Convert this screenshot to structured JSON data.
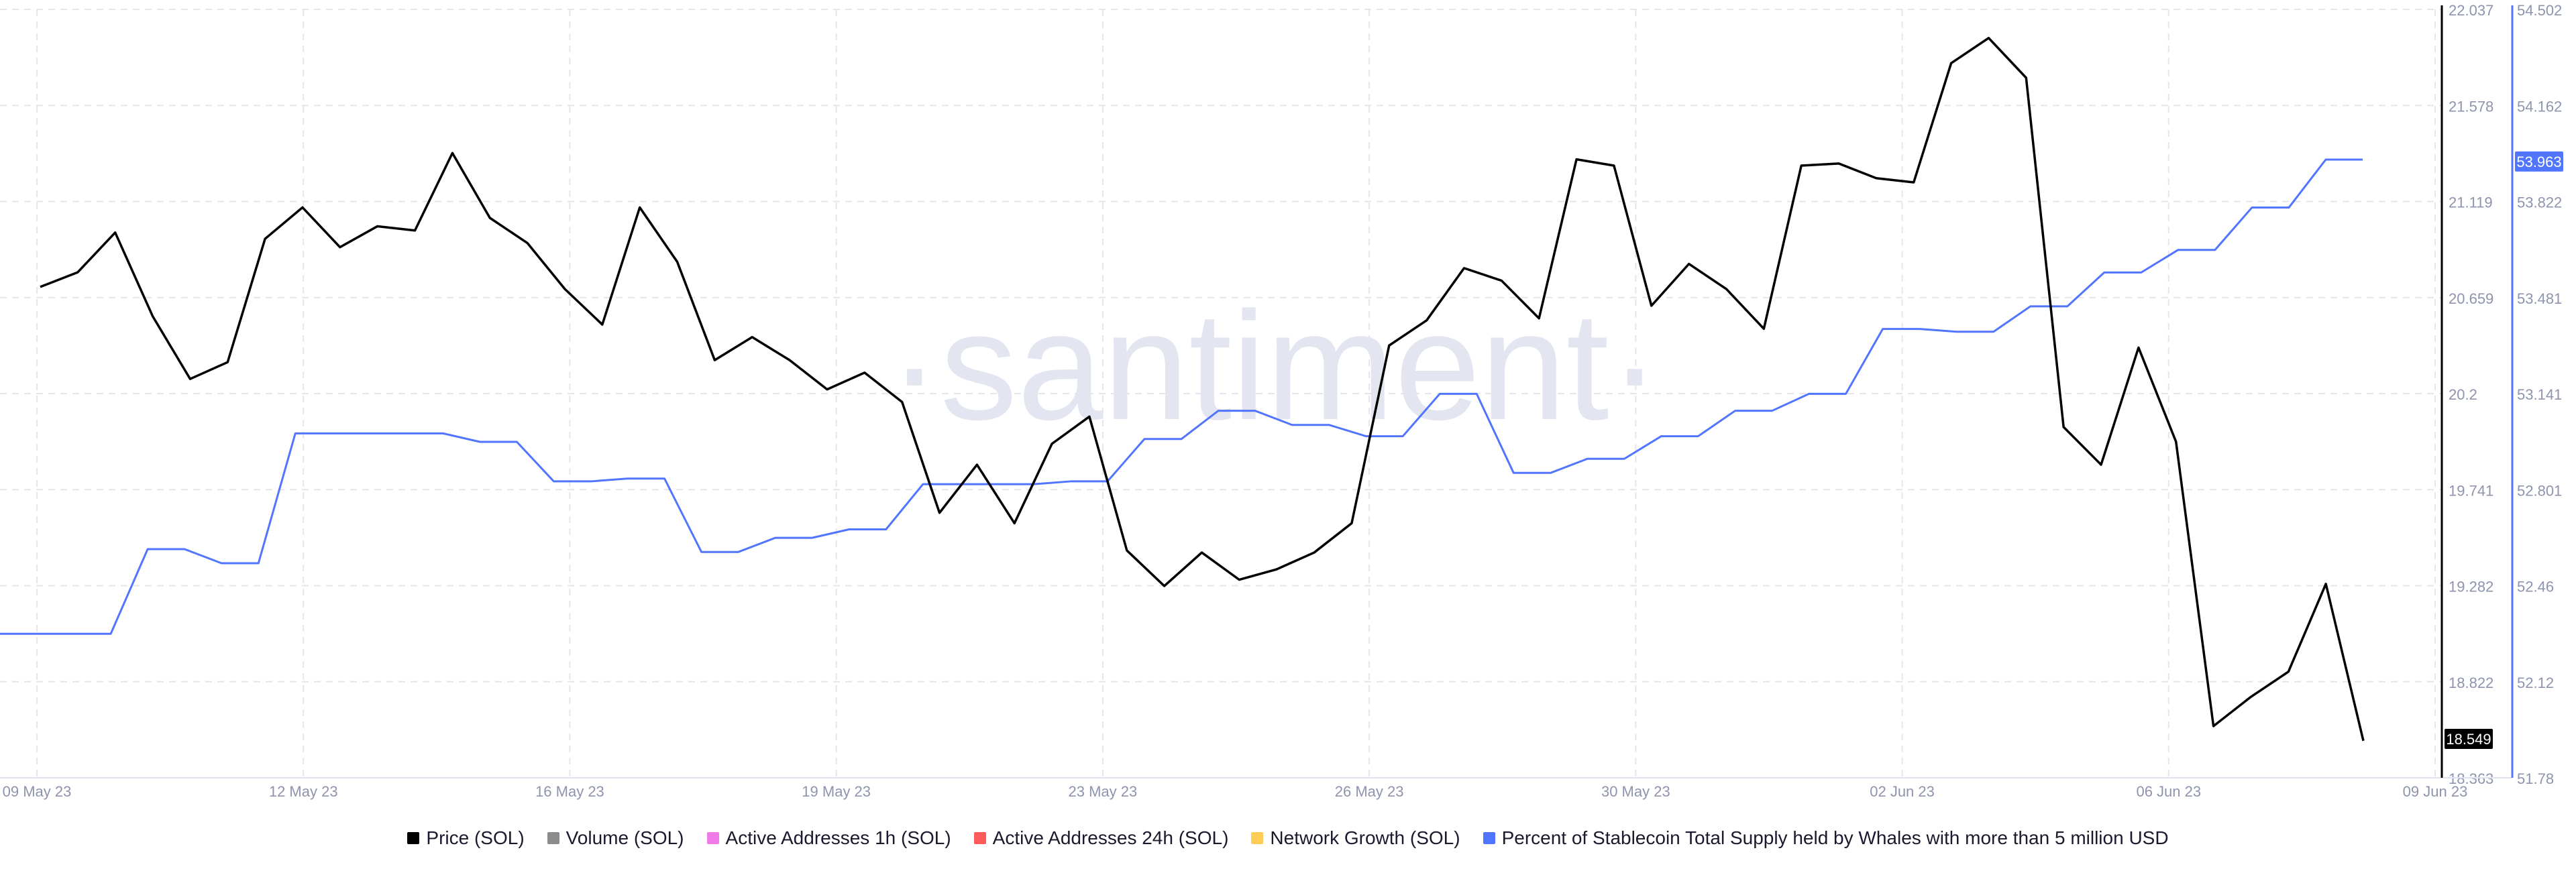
{
  "watermark": "·santiment·",
  "colors": {
    "price": "#000000",
    "volume": "#8c8c8c",
    "active_1h": "#f07be8",
    "active_24h": "#ff5b5b",
    "network_growth": "#ffcd55",
    "whale_pct": "#5275ff",
    "grid": "#e6e6ea",
    "axis_text": "#8e94ad"
  },
  "chart_data": {
    "type": "line",
    "grid": true,
    "x_tick_labels": [
      "09 May 23",
      "12 May 23",
      "16 May 23",
      "19 May 23",
      "23 May 23",
      "26 May 23",
      "30 May 23",
      "02 Jun 23",
      "06 Jun 23",
      "09 Jun 23"
    ],
    "left_axis": {
      "ticks": [
        "22.037",
        "21.578",
        "21.119",
        "20.659",
        "20.2",
        "19.741",
        "19.282",
        "18.822",
        "18.363"
      ],
      "ylim": [
        18.363,
        22.037
      ],
      "current_label": "18.549"
    },
    "right_axis": {
      "ticks": [
        "54.502",
        "54.162",
        "53.822",
        "53.481",
        "53.141",
        "52.801",
        "52.46",
        "52.12",
        "51.78"
      ],
      "ylim": [
        51.78,
        54.502
      ],
      "current_label": "53.963"
    },
    "series": [
      {
        "name": "Price (SOL)",
        "axis": "left",
        "values": [
          20.71,
          20.78,
          20.97,
          20.57,
          20.27,
          20.35,
          20.94,
          21.09,
          20.9,
          21.0,
          20.98,
          21.35,
          21.04,
          20.92,
          20.7,
          20.53,
          21.09,
          20.83,
          20.36,
          20.47,
          20.36,
          20.22,
          20.3,
          20.16,
          19.63,
          19.86,
          19.58,
          19.96,
          20.09,
          19.45,
          19.28,
          19.44,
          19.31,
          19.36,
          19.44,
          19.58,
          20.43,
          20.55,
          20.8,
          20.74,
          20.56,
          21.32,
          21.29,
          20.62,
          20.82,
          20.7,
          20.51,
          21.29,
          21.3,
          21.23,
          21.21,
          21.78,
          21.9,
          21.71,
          20.04,
          19.86,
          20.42,
          19.97,
          18.61,
          18.75,
          18.87,
          19.29,
          18.54
        ]
      },
      {
        "name": "Percent of Stablecoin Total Supply held by Whales with more than 5 million USD",
        "axis": "right",
        "values": [
          52.29,
          52.29,
          52.29,
          52.29,
          52.59,
          52.59,
          52.54,
          52.54,
          53.0,
          53.0,
          53.0,
          53.0,
          53.0,
          52.97,
          52.97,
          52.83,
          52.83,
          52.84,
          52.84,
          52.58,
          52.58,
          52.63,
          52.63,
          52.66,
          52.66,
          52.82,
          52.82,
          52.82,
          52.82,
          52.83,
          52.83,
          52.98,
          52.98,
          53.08,
          53.08,
          53.03,
          53.03,
          52.99,
          52.99,
          53.14,
          53.14,
          52.86,
          52.86,
          52.91,
          52.91,
          52.99,
          52.99,
          53.08,
          53.08,
          53.14,
          53.14,
          53.37,
          53.37,
          53.36,
          53.36,
          53.45,
          53.45,
          53.57,
          53.57,
          53.65,
          53.65,
          53.8,
          53.8,
          53.97,
          53.97
        ]
      }
    ],
    "legend": [
      {
        "label": "Price (SOL)",
        "color": "#000000"
      },
      {
        "label": "Volume (SOL)",
        "color": "#8c8c8c"
      },
      {
        "label": "Active Addresses 1h (SOL)",
        "color": "#f07be8"
      },
      {
        "label": "Active Addresses 24h (SOL)",
        "color": "#ff5b5b"
      },
      {
        "label": "Network Growth (SOL)",
        "color": "#ffcd55"
      },
      {
        "label": "Percent of Stablecoin Total Supply held by Whales with more than 5 million USD",
        "color": "#5275ff"
      }
    ]
  }
}
